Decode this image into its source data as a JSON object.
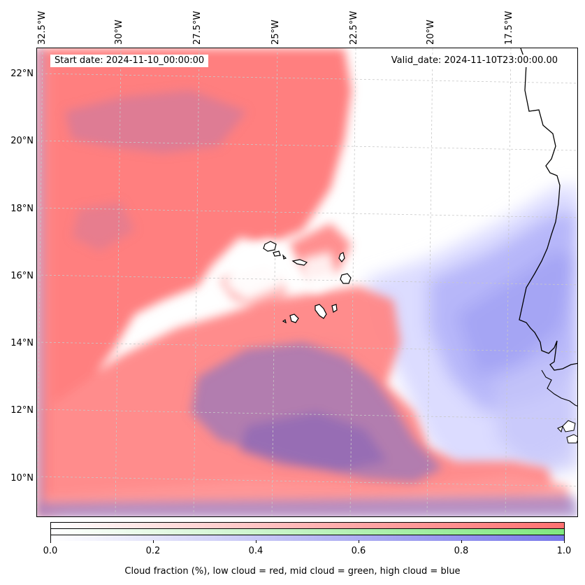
{
  "map": {
    "start_label": "Start date: 2024-11-10_00:00:00",
    "valid_label": "Valid_date: 2024-11-10T23:00:00.00",
    "lon_labels": [
      "32.5°W",
      "30°W",
      "27.5°W",
      "25°W",
      "22.5°W",
      "20°W",
      "17.5°W"
    ],
    "lat_labels": [
      "22°N",
      "20°N",
      "18°N",
      "16°N",
      "14°N",
      "12°N",
      "10°N"
    ],
    "colors": {
      "low_cloud": "#ff7c7c",
      "mid_cloud": "#88ee88",
      "high_cloud": "#8a8af0",
      "mixed_cloud": "#a87ab8",
      "coastline": "#000000",
      "gridline": "#c8c8c8"
    }
  },
  "colorbar": {
    "tick_labels": [
      "0.0",
      "0.2",
      "0.4",
      "0.6",
      "0.8",
      "1.0"
    ],
    "caption": "Cloud fraction (%), low cloud = red, mid cloud = green, high cloud = blue",
    "range": [
      0.0,
      1.0
    ]
  }
}
